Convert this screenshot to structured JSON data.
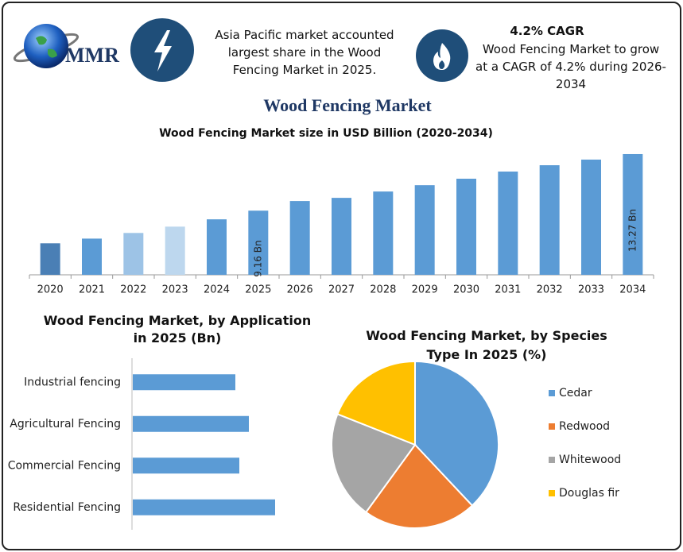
{
  "header": {
    "logo": "MMR",
    "highlight": "Asia Pacific market accounted largest share in the Wood Fencing Market in 2025.",
    "cagr_title": "4.2% CAGR",
    "cagr_text": "Wood Fencing Market to grow at a CAGR of 4.2% during 2026-2034",
    "title": "Wood Fencing Market"
  },
  "chart_data": [
    {
      "type": "bar",
      "title": "Wood Fencing Market size in USD Billion (2020-2034)",
      "categories": [
        "2020",
        "2021",
        "2022",
        "2023",
        "2024",
        "2025",
        "2026",
        "2027",
        "2028",
        "2029",
        "2030",
        "2031",
        "2032",
        "2033",
        "2034"
      ],
      "values": [
        6.79,
        7.13,
        7.54,
        8.0,
        8.53,
        9.16,
        9.86,
        10.09,
        10.55,
        11.01,
        11.48,
        12.0,
        12.46,
        12.87,
        13.27
      ],
      "value_labels": [
        null,
        null,
        null,
        null,
        null,
        "9.16 Bn",
        null,
        null,
        null,
        null,
        null,
        null,
        null,
        null,
        "13.27 Bn"
      ],
      "colors": [
        "#4a7fb5",
        "#5b9bd5",
        "#9dc3e6",
        "#bdd7ee",
        "#5b9bd5",
        "#5b9bd5",
        "#5b9bd5",
        "#5b9bd5",
        "#5b9bd5",
        "#5b9bd5",
        "#5b9bd5",
        "#5b9bd5",
        "#5b9bd5",
        "#5b9bd5",
        "#5b9bd5"
      ],
      "ylim": [
        4.5,
        13.5
      ]
    },
    {
      "type": "hbar",
      "title": "Wood Fencing Market, by Application in 2025 (Bn)",
      "categories": [
        "Industrial fencing",
        "Agricultural Fencing",
        "Commercial Fencing",
        "Residential Fencing"
      ],
      "values": [
        1.29,
        1.46,
        1.34,
        1.79
      ],
      "color": "#5b9bd5",
      "xlim": [
        0,
        2
      ]
    },
    {
      "type": "pie",
      "title": "Wood Fencing Market, by Species Type In 2025 (%)",
      "categories": [
        "Cedar",
        "Redwood",
        "Whitewood",
        "Douglas fir"
      ],
      "values": [
        38,
        22,
        21,
        19
      ],
      "colors": [
        "#5b9bd5",
        "#ed7d31",
        "#a5a5a5",
        "#ffc000"
      ],
      "legend": "right"
    }
  ]
}
